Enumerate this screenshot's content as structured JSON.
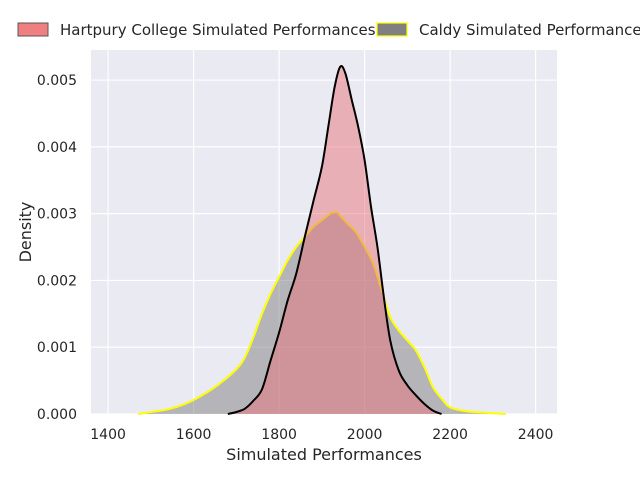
{
  "chart_data": {
    "type": "area",
    "xlabel": "Simulated Performances",
    "ylabel": "Density",
    "xlim": [
      1360,
      2450
    ],
    "ylim": [
      0,
      0.00545
    ],
    "x_ticks": [
      1400,
      1600,
      1800,
      2000,
      2200,
      2400
    ],
    "y_ticks": [
      0.0,
      0.001,
      0.002,
      0.003,
      0.004,
      0.005
    ],
    "x_tick_labels": [
      "1400",
      "1600",
      "1800",
      "2000",
      "2200",
      "2400"
    ],
    "y_tick_labels": [
      "0.000",
      "0.001",
      "0.002",
      "0.003",
      "0.004",
      "0.005"
    ],
    "grid": true,
    "legend_placement": "top (above plot, two columns)",
    "series": [
      {
        "name": "Hartpury College Simulated Performances",
        "fill_color": "#e8747c",
        "line_color": "#000000",
        "points": [
          [
            1680,
            0.0
          ],
          [
            1700,
            3e-05
          ],
          [
            1720,
            8e-05
          ],
          [
            1740,
            0.0002
          ],
          [
            1760,
            0.00037
          ],
          [
            1780,
            0.0008
          ],
          [
            1800,
            0.00122
          ],
          [
            1820,
            0.0017
          ],
          [
            1840,
            0.0021
          ],
          [
            1860,
            0.00265
          ],
          [
            1880,
            0.00318
          ],
          [
            1900,
            0.0037
          ],
          [
            1915,
            0.0043
          ],
          [
            1930,
            0.0049
          ],
          [
            1943,
            0.0052
          ],
          [
            1955,
            0.0051
          ],
          [
            1970,
            0.0047
          ],
          [
            1985,
            0.0043
          ],
          [
            2000,
            0.0038
          ],
          [
            2015,
            0.0031
          ],
          [
            2030,
            0.0025
          ],
          [
            2045,
            0.00175
          ],
          [
            2060,
            0.0011
          ],
          [
            2080,
            0.00065
          ],
          [
            2100,
            0.00043
          ],
          [
            2120,
            0.00028
          ],
          [
            2140,
            0.00015
          ],
          [
            2160,
            5e-05
          ],
          [
            2180,
            0.0
          ]
        ]
      },
      {
        "name": "Caldy Simulated Performances",
        "fill_color": "#7f7f7f",
        "line_color": "#ffff00",
        "points": [
          [
            1470,
            0.0
          ],
          [
            1500,
            3e-05
          ],
          [
            1540,
            7e-05
          ],
          [
            1580,
            0.00015
          ],
          [
            1620,
            0.00028
          ],
          [
            1660,
            0.00045
          ],
          [
            1700,
            0.00067
          ],
          [
            1720,
            0.00085
          ],
          [
            1740,
            0.00115
          ],
          [
            1760,
            0.0015
          ],
          [
            1780,
            0.0018
          ],
          [
            1800,
            0.00205
          ],
          [
            1820,
            0.0023
          ],
          [
            1840,
            0.0025
          ],
          [
            1860,
            0.00265
          ],
          [
            1880,
            0.0028
          ],
          [
            1900,
            0.0029
          ],
          [
            1920,
            0.003
          ],
          [
            1935,
            0.00302
          ],
          [
            1945,
            0.00295
          ],
          [
            1960,
            0.00285
          ],
          [
            1980,
            0.00272
          ],
          [
            2000,
            0.0025
          ],
          [
            2020,
            0.00225
          ],
          [
            2040,
            0.00185
          ],
          [
            2060,
            0.00145
          ],
          [
            2080,
            0.00125
          ],
          [
            2100,
            0.0011
          ],
          [
            2120,
            0.00095
          ],
          [
            2140,
            0.0007
          ],
          [
            2160,
            0.0004
          ],
          [
            2180,
            0.00023
          ],
          [
            2200,
            0.0001
          ],
          [
            2240,
            4e-05
          ],
          [
            2280,
            2e-05
          ],
          [
            2330,
            0.0
          ]
        ]
      }
    ]
  }
}
